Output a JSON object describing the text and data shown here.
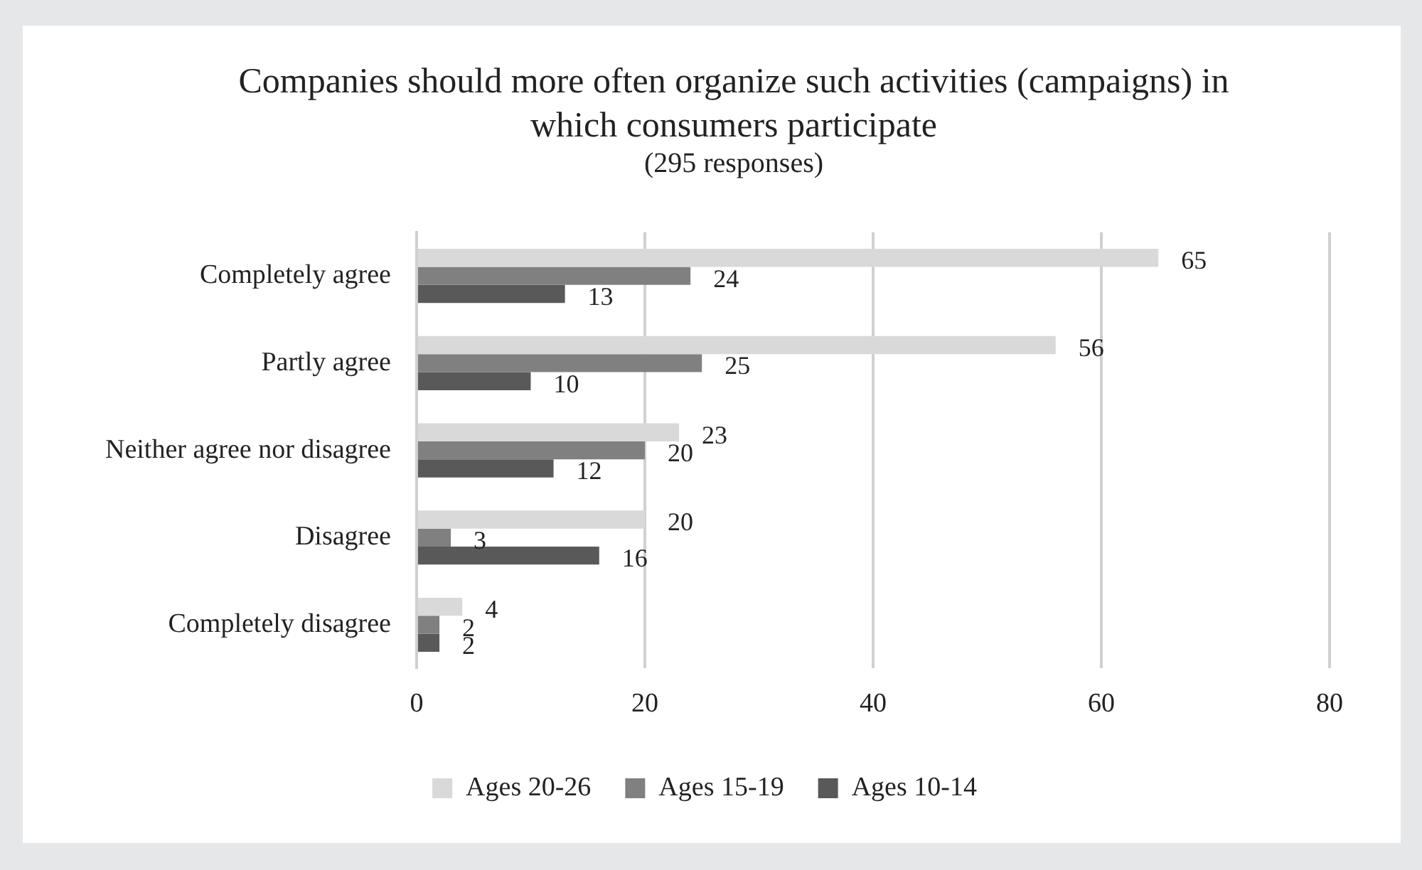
{
  "chart_data": {
    "type": "bar",
    "orientation": "horizontal",
    "title": "Companies should more often organize such activities (campaigns) in which consumers participate",
    "subtitle": "(295 responses)",
    "categories": [
      "Completely agree",
      "Partly agree",
      "Neither agree nor disagree",
      "Disagree",
      "Completely disagree"
    ],
    "series": [
      {
        "name": "Ages 20-26",
        "color": "#d9d9d9",
        "values": [
          65,
          56,
          23,
          20,
          4
        ]
      },
      {
        "name": "Ages 15-19",
        "color": "#808080",
        "values": [
          24,
          25,
          20,
          3,
          2
        ]
      },
      {
        "name": "Ages 10-14",
        "color": "#595959",
        "values": [
          13,
          10,
          12,
          16,
          2
        ]
      }
    ],
    "xlim": [
      0,
      80
    ],
    "xticks": [
      0,
      20,
      40,
      60,
      80
    ],
    "grid": "x",
    "legend": "bottom",
    "data_labels": true
  }
}
